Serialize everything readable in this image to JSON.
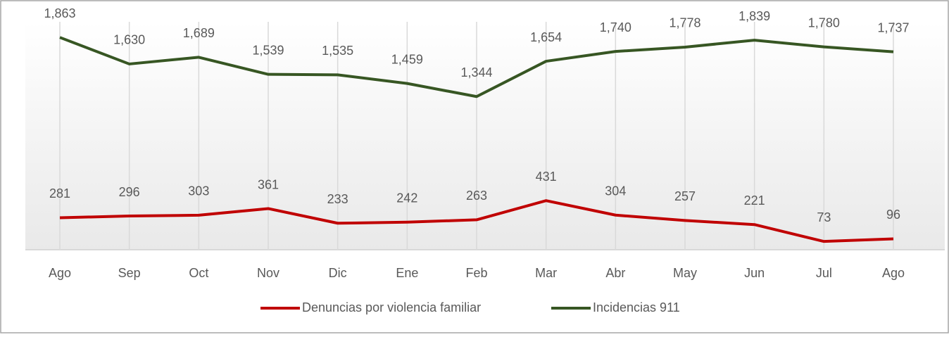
{
  "chart_data": {
    "type": "line",
    "categories": [
      "Ago",
      "Sep",
      "Oct",
      "Nov",
      "Dic",
      "Ene",
      "Feb",
      "Mar",
      "Abr",
      "May",
      "Jun",
      "Jul",
      "Ago"
    ],
    "series": [
      {
        "name": "Denuncias por violencia familiar",
        "color": "#c00000",
        "values": [
          281,
          296,
          303,
          361,
          233,
          242,
          263,
          431,
          304,
          257,
          221,
          73,
          96
        ]
      },
      {
        "name": "Incidencias 911",
        "color": "#375623",
        "values": [
          1863,
          1630,
          1689,
          1539,
          1535,
          1459,
          1344,
          1654,
          1740,
          1778,
          1839,
          1780,
          1737
        ],
        "value_labels": [
          "1,863",
          "1,630",
          "1,689",
          "1,539",
          "1,535",
          "1,459",
          "1,344",
          "1,654",
          "1,740",
          "1,778",
          "1,839",
          "1,780",
          "1,737"
        ]
      }
    ],
    "ylim": [
      0,
      2000
    ],
    "legend": "bottom"
  }
}
